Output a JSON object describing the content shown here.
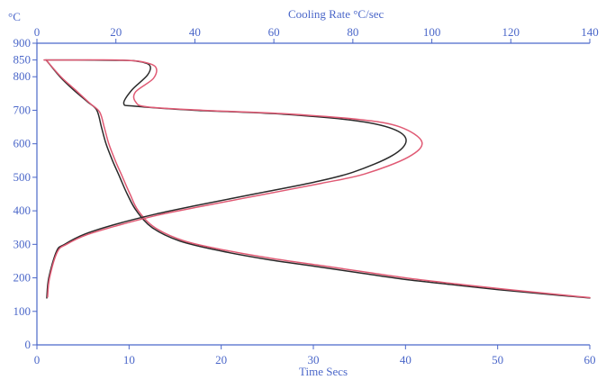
{
  "chart_data": {
    "type": "line",
    "title": "",
    "xlabel": "Time Secs",
    "x2label": "Cooling Rate  °C/sec",
    "ylabel": "°C",
    "xlim": [
      0,
      60
    ],
    "x2lim": [
      0,
      140
    ],
    "ylim": [
      0,
      900
    ],
    "xticks": [
      0,
      10,
      20,
      30,
      40,
      50,
      60
    ],
    "x2ticks": [
      0,
      20,
      40,
      60,
      80,
      100,
      120,
      140
    ],
    "yticks": [
      0,
      100,
      200,
      300,
      400,
      500,
      600,
      700,
      800,
      850,
      900
    ],
    "grid": false,
    "legend": "none",
    "colors": {
      "axis": "#4b67c9",
      "series_a": "#2a2a2a",
      "series_b": "#e05a74"
    },
    "series": [
      {
        "kind": "cooling_curve",
        "axis": "bottom",
        "color": "#2a2a2a",
        "points": [
          [
            1.0,
            850
          ],
          [
            2.5,
            800
          ],
          [
            4.0,
            760
          ],
          [
            5.5,
            725
          ],
          [
            6.5,
            700
          ],
          [
            7.0,
            650
          ],
          [
            7.5,
            600
          ],
          [
            8.2,
            550
          ],
          [
            9.0,
            500
          ],
          [
            9.8,
            450
          ],
          [
            10.8,
            400
          ],
          [
            12.5,
            350
          ],
          [
            15.5,
            310
          ],
          [
            20.0,
            280
          ],
          [
            25.0,
            255
          ],
          [
            30.0,
            235
          ],
          [
            35.0,
            215
          ],
          [
            40.0,
            195
          ],
          [
            45.0,
            180
          ],
          [
            50.0,
            165
          ],
          [
            55.0,
            152
          ],
          [
            60.0,
            140
          ]
        ]
      },
      {
        "kind": "cooling_curve",
        "axis": "bottom",
        "color": "#e05a74",
        "points": [
          [
            1.0,
            850
          ],
          [
            2.6,
            800
          ],
          [
            4.2,
            760
          ],
          [
            5.7,
            722
          ],
          [
            6.8,
            695
          ],
          [
            7.3,
            650
          ],
          [
            7.8,
            600
          ],
          [
            8.5,
            550
          ],
          [
            9.3,
            500
          ],
          [
            10.1,
            450
          ],
          [
            11.0,
            400
          ],
          [
            12.8,
            350
          ],
          [
            16.0,
            310
          ],
          [
            20.5,
            282
          ],
          [
            25.5,
            258
          ],
          [
            30.5,
            238
          ],
          [
            35.5,
            218
          ],
          [
            40.5,
            198
          ],
          [
            45.5,
            182
          ],
          [
            50.5,
            167
          ],
          [
            55.5,
            153
          ],
          [
            60.0,
            141
          ]
        ]
      },
      {
        "kind": "cooling_rate",
        "axis": "top",
        "color": "#2a2a2a",
        "points": [
          [
            2.0,
            850
          ],
          [
            10.0,
            850
          ],
          [
            20.0,
            849
          ],
          [
            25.0,
            847
          ],
          [
            28.5,
            835
          ],
          [
            28.0,
            805
          ],
          [
            24.0,
            760
          ],
          [
            22.0,
            720
          ],
          [
            25.0,
            712
          ],
          [
            40.0,
            700
          ],
          [
            60.0,
            690
          ],
          [
            80.0,
            670
          ],
          [
            90.0,
            645
          ],
          [
            93.5,
            610
          ],
          [
            90.0,
            565
          ],
          [
            80.0,
            515
          ],
          [
            70.0,
            485
          ],
          [
            55.0,
            450
          ],
          [
            40.0,
            415
          ],
          [
            30.0,
            390
          ],
          [
            20.0,
            360
          ],
          [
            12.0,
            330
          ],
          [
            7.0,
            300
          ],
          [
            5.0,
            280
          ],
          [
            3.0,
            200
          ],
          [
            2.5,
            140
          ]
        ]
      },
      {
        "kind": "cooling_rate",
        "axis": "top",
        "color": "#e05a74",
        "points": [
          [
            1.8,
            850
          ],
          [
            10.0,
            850
          ],
          [
            20.0,
            850
          ],
          [
            26.0,
            846
          ],
          [
            30.0,
            830
          ],
          [
            29.5,
            795
          ],
          [
            25.0,
            755
          ],
          [
            25.0,
            725
          ],
          [
            28.0,
            710
          ],
          [
            42.0,
            700
          ],
          [
            62.0,
            690
          ],
          [
            82.0,
            672
          ],
          [
            92.0,
            650
          ],
          [
            97.5,
            605
          ],
          [
            94.0,
            560
          ],
          [
            83.0,
            510
          ],
          [
            72.0,
            482
          ],
          [
            57.0,
            448
          ],
          [
            42.0,
            414
          ],
          [
            31.0,
            388
          ],
          [
            21.0,
            358
          ],
          [
            12.5,
            328
          ],
          [
            7.5,
            300
          ],
          [
            5.2,
            278
          ],
          [
            3.2,
            200
          ],
          [
            2.7,
            143
          ]
        ]
      }
    ]
  }
}
